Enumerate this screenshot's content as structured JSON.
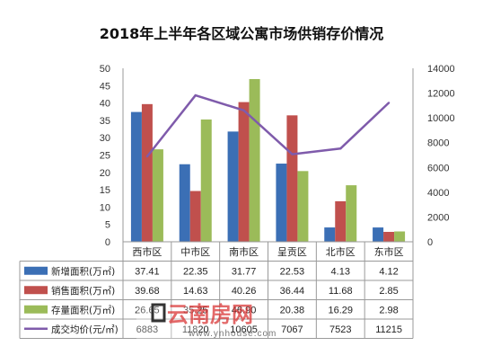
{
  "chart_data": {
    "type": "bar",
    "title": "2018年上半年各区域公寓市场供销存价情况",
    "categories": [
      "西市区",
      "中市区",
      "南市区",
      "呈贡区",
      "北市区",
      "东市区"
    ],
    "series": [
      {
        "name": "新增面积(万㎡)",
        "type": "bar",
        "axis": "left",
        "color": "#3b6fb5",
        "values": [
          37.41,
          22.35,
          31.77,
          22.53,
          4.13,
          4.12
        ]
      },
      {
        "name": "销售面积(万㎡)",
        "type": "bar",
        "axis": "left",
        "color": "#c0504d",
        "values": [
          39.68,
          14.63,
          40.26,
          36.44,
          11.68,
          2.85
        ]
      },
      {
        "name": "存量面积(万㎡)",
        "type": "bar",
        "axis": "left",
        "color": "#9bbb59",
        "values": [
          26.65,
          35.25,
          46.9,
          20.38,
          16.29,
          2.98
        ]
      },
      {
        "name": "成交均价(元/㎡)",
        "type": "line",
        "axis": "right",
        "color": "#7f5bab",
        "values": [
          6883,
          11820,
          10605,
          7067,
          7523,
          11215
        ]
      }
    ],
    "table_values": [
      [
        "37.41",
        "22.35",
        "31.77",
        "22.53",
        "4.13",
        "4.12"
      ],
      [
        "39.68",
        "14.63",
        "40.26",
        "36.44",
        "11.68",
        "2.85"
      ],
      [
        "26.65",
        "35.25",
        "46.90",
        "20.38",
        "16.29",
        "2.98"
      ],
      [
        "6883",
        "11820",
        "10605",
        "7067",
        "7523",
        "11215"
      ]
    ],
    "y_left": {
      "min": 0,
      "max": 50,
      "ticks": [
        "0",
        "5",
        "10",
        "15",
        "20",
        "25",
        "30",
        "35",
        "40",
        "45",
        "50"
      ]
    },
    "y_right": {
      "min": 0,
      "max": 14000,
      "ticks": [
        "0",
        "2000",
        "4000",
        "6000",
        "8000",
        "10000",
        "12000",
        "14000"
      ]
    },
    "grid": false,
    "legend": "data-table"
  },
  "watermark": {
    "brand_text": "云南房网",
    "url": "www.ynhouse.com"
  }
}
